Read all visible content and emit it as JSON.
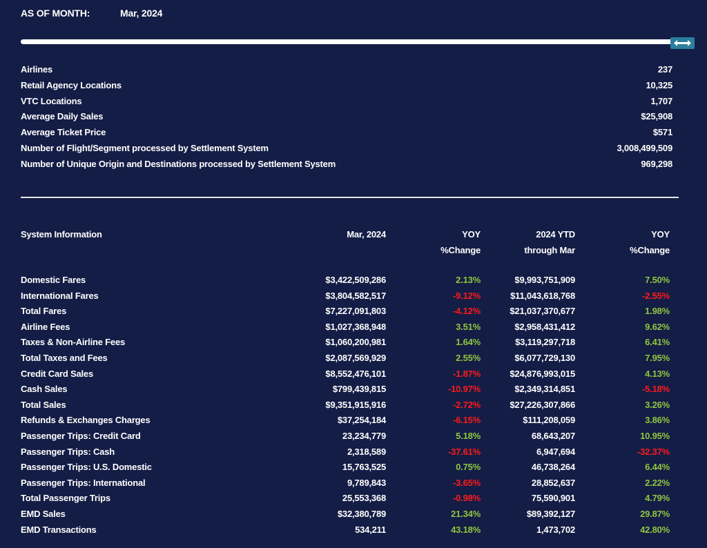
{
  "header": {
    "as_of_label": "AS OF MONTH:",
    "month": "Mar, 2024"
  },
  "slider": {
    "handle_icon": "left-right-arrow-icon",
    "handle_color": "#2a7f9c"
  },
  "stats": [
    {
      "label": "Airlines",
      "value": "237"
    },
    {
      "label": "Retail Agency Locations",
      "value": "10,325"
    },
    {
      "label": "VTC Locations",
      "value": "1,707"
    },
    {
      "label": "Average Daily Sales",
      "value": "$25,908"
    },
    {
      "label": "Average Ticket Price",
      "value": "$571"
    },
    {
      "label": "Number of Flight/Segment processed by Settlement System",
      "value": "3,008,499,509"
    },
    {
      "label": "Number of Unique Origin and Destinations processed by Settlement System",
      "value": "969,298"
    }
  ],
  "table": {
    "headers": {
      "label": "System Information",
      "month": "Mar, 2024",
      "yoy1_line1": "YOY",
      "yoy1_line2": "%Change",
      "ytd_line1": "2024 YTD",
      "ytd_line2": "through Mar",
      "yoy2_line1": "YOY",
      "yoy2_line2": "%Change"
    },
    "colors": {
      "positive": "#8fc640",
      "negative": "#ff1a1a",
      "background": "#141d45"
    },
    "rows": [
      {
        "label": "Domestic Fares",
        "month": "$3,422,509,286",
        "yoy1": "2.13%",
        "ytd": "$9,993,751,909",
        "yoy2": "7.50%"
      },
      {
        "label": "International Fares",
        "month": "$3,804,582,517",
        "yoy1": "-9.12%",
        "ytd": "$11,043,618,768",
        "yoy2": "-2.55%"
      },
      {
        "label": "Total Fares",
        "month": "$7,227,091,803",
        "yoy1": "-4.12%",
        "ytd": "$21,037,370,677",
        "yoy2": "1.98%"
      },
      {
        "label": "Airline Fees",
        "month": "$1,027,368,948",
        "yoy1": "3.51%",
        "ytd": "$2,958,431,412",
        "yoy2": "9.62%"
      },
      {
        "label": "Taxes & Non-Airline Fees",
        "month": "$1,060,200,981",
        "yoy1": "1.64%",
        "ytd": "$3,119,297,718",
        "yoy2": "6.41%"
      },
      {
        "label": "Total Taxes and Fees",
        "month": "$2,087,569,929",
        "yoy1": "2.55%",
        "ytd": "$6,077,729,130",
        "yoy2": "7.95%"
      },
      {
        "label": "Credit Card Sales",
        "month": "$8,552,476,101",
        "yoy1": "-1.87%",
        "ytd": "$24,876,993,015",
        "yoy2": "4.13%"
      },
      {
        "label": "Cash Sales",
        "month": "$799,439,815",
        "yoy1": "-10.97%",
        "ytd": "$2,349,314,851",
        "yoy2": "-5.18%"
      },
      {
        "label": "Total Sales",
        "month": "$9,351,915,916",
        "yoy1": "-2.72%",
        "ytd": "$27,226,307,866",
        "yoy2": "3.26%"
      },
      {
        "label": "Refunds & Exchanges Charges",
        "month": "$37,254,184",
        "yoy1": "-6.15%",
        "ytd": "$111,208,059",
        "yoy2": "3.86%"
      },
      {
        "label": "Passenger Trips: Credit Card",
        "month": "23,234,779",
        "yoy1": "5.18%",
        "ytd": "68,643,207",
        "yoy2": "10.95%"
      },
      {
        "label": "Passenger Trips: Cash",
        "month": "2,318,589",
        "yoy1": "-37.61%",
        "ytd": "6,947,694",
        "yoy2": "-32.37%"
      },
      {
        "label": "Passenger Trips: U.S. Domestic",
        "month": "15,763,525",
        "yoy1": "0.75%",
        "ytd": "46,738,264",
        "yoy2": "6.44%"
      },
      {
        "label": "Passenger Trips: International",
        "month": "9,789,843",
        "yoy1": "-3.65%",
        "ytd": "28,852,637",
        "yoy2": "2.22%"
      },
      {
        "label": "Total Passenger Trips",
        "month": "25,553,368",
        "yoy1": "-0.98%",
        "ytd": "75,590,901",
        "yoy2": "4.79%"
      },
      {
        "label": "EMD Sales",
        "month": "$32,380,789",
        "yoy1": "21.34%",
        "ytd": "$89,392,127",
        "yoy2": "29.87%"
      },
      {
        "label": "EMD Transactions",
        "month": "534,211",
        "yoy1": "43.18%",
        "ytd": "1,473,702",
        "yoy2": "42.80%"
      }
    ]
  }
}
